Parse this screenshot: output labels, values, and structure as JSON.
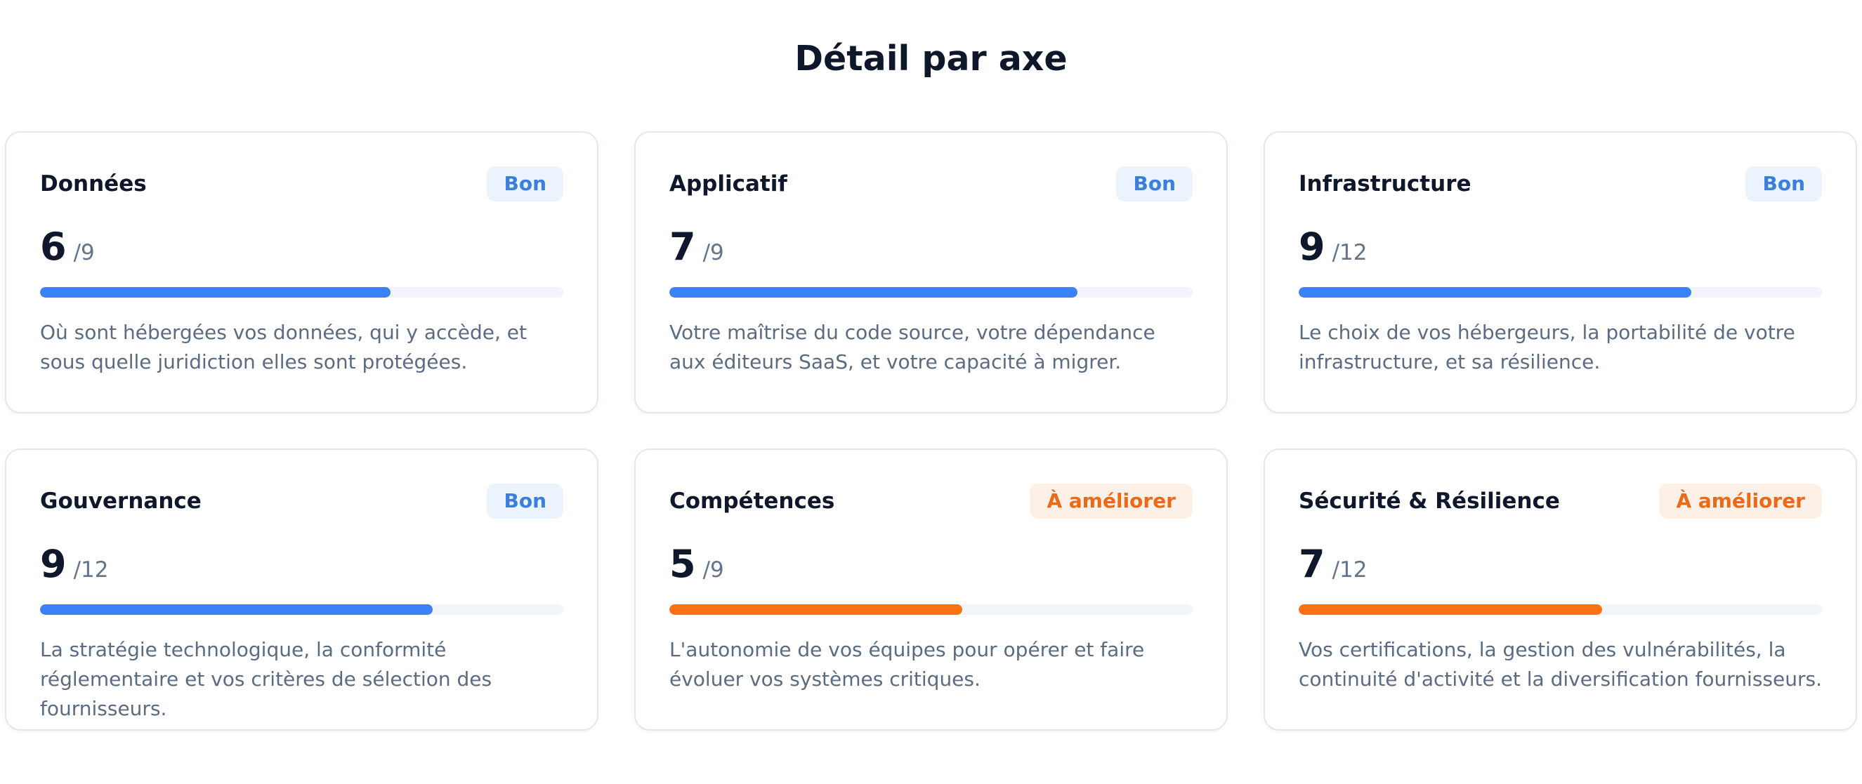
{
  "section": {
    "title": "Détail par axe"
  },
  "colors": {
    "good_accent": "#3b82f6",
    "improve_accent": "#f97316",
    "good_badge_bg": "#ebf3fd",
    "improve_badge_bg": "#fdf0e6"
  },
  "cards": [
    {
      "title": "Données",
      "badge": "Bon",
      "status": "good",
      "score": "6",
      "max": "/9",
      "progress_percent": 67,
      "description": "Où sont hébergées vos données, qui y accède, et sous quelle juridiction elles sont protégées."
    },
    {
      "title": "Applicatif",
      "badge": "Bon",
      "status": "good",
      "score": "7",
      "max": "/9",
      "progress_percent": 78,
      "description": "Votre maîtrise du code source, votre dépendance aux éditeurs SaaS, et votre capacité à migrer."
    },
    {
      "title": "Infrastructure",
      "badge": "Bon",
      "status": "good",
      "score": "9",
      "max": "/12",
      "progress_percent": 75,
      "description": "Le choix de vos hébergeurs, la portabilité de votre infrastructure, et sa résilience."
    },
    {
      "title": "Gouvernance",
      "badge": "Bon",
      "status": "good",
      "score": "9",
      "max": "/12",
      "progress_percent": 75,
      "description": "La stratégie technologique, la conformité réglementaire et vos critères de sélection des fournisseurs."
    },
    {
      "title": "Compétences",
      "badge": "À améliorer",
      "status": "improve",
      "score": "5",
      "max": "/9",
      "progress_percent": 56,
      "description": "L'autonomie de vos équipes pour opérer et faire évoluer vos systèmes critiques."
    },
    {
      "title": "Sécurité & Résilience",
      "badge": "À améliorer",
      "status": "improve",
      "score": "7",
      "max": "/12",
      "progress_percent": 58,
      "description": "Vos certifications, la gestion des vulnérabilités, la continuité d'activité et la diversification fournisseurs."
    }
  ]
}
